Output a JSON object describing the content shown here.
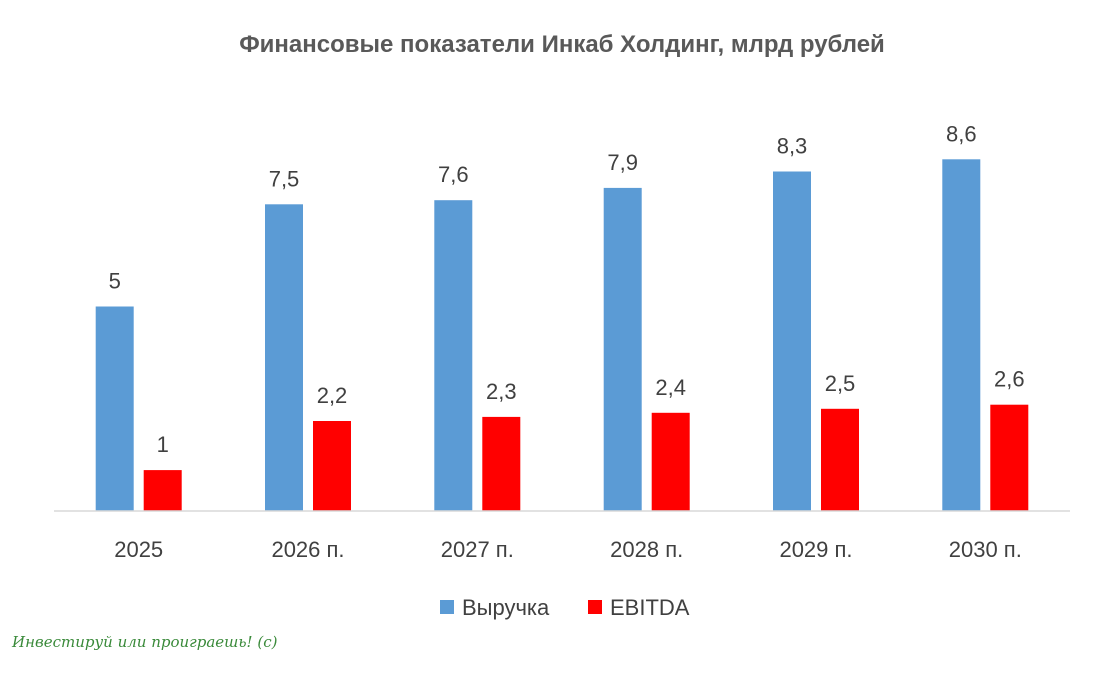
{
  "chart_data": {
    "type": "bar",
    "title": "Финансовые показатели Инкаб Холдинг, млрд рублей",
    "categories": [
      "2025",
      "2026 п.",
      "2027 п.",
      "2028 п.",
      "2029 п.",
      "2030 п."
    ],
    "series": [
      {
        "name": "Выручка",
        "color": "#5B9BD5",
        "values": [
          5,
          7.5,
          7.6,
          7.9,
          8.3,
          8.6
        ],
        "labels": [
          "5",
          "7,5",
          "7,6",
          "7,9",
          "8,3",
          "8,6"
        ]
      },
      {
        "name": "EBITDA",
        "color": "#FF0000",
        "values": [
          1,
          2.2,
          2.3,
          2.4,
          2.5,
          2.6
        ],
        "labels": [
          "1",
          "2,2",
          "2,3",
          "2,4",
          "2,5",
          "2,6"
        ]
      }
    ],
    "ylim": [
      0,
      10
    ],
    "grid": false,
    "legend_position": "bottom"
  },
  "watermark": "Инвестируй или проиграешь! (с)"
}
